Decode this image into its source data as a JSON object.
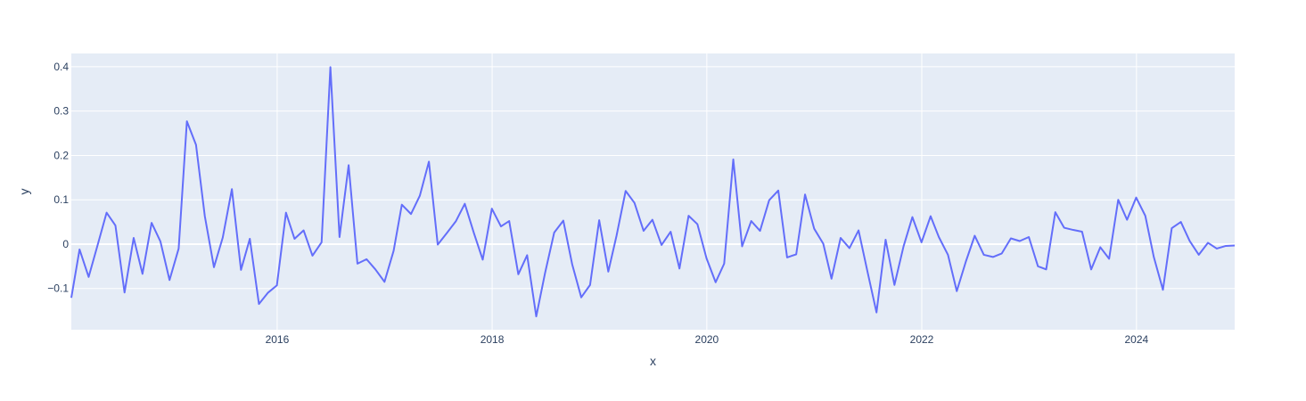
{
  "chart_data": {
    "type": "line",
    "xlabel": "x",
    "ylabel": "y",
    "x_axis": {
      "type": "date",
      "range": [
        "2014-01-31",
        "2024-11-30"
      ],
      "ticks": [
        "2016-01-01",
        "2018-01-01",
        "2020-01-01",
        "2022-01-01",
        "2024-01-01"
      ],
      "tick_labels": [
        "2016",
        "2018",
        "2020",
        "2022",
        "2024"
      ]
    },
    "y_axis": {
      "range": [
        -0.193,
        0.43
      ],
      "ticks": [
        -0.1,
        0,
        0.1,
        0.2,
        0.3,
        0.4
      ],
      "tick_labels": [
        "−0.1",
        "0",
        "0.1",
        "0.2",
        "0.3",
        "0.4"
      ]
    },
    "grid": true,
    "legend": "none",
    "colors": {
      "line": "#636efa",
      "plot_bg": "#e5ecf6",
      "grid": "#ffffff",
      "text": "#2a3f5f"
    },
    "series": [
      {
        "x": [
          "2014-01-31",
          "2014-02-28",
          "2014-03-31",
          "2014-04-30",
          "2014-05-31",
          "2014-06-30",
          "2014-07-31",
          "2014-08-31",
          "2014-09-30",
          "2014-10-31",
          "2014-11-30",
          "2014-12-31",
          "2015-01-31",
          "2015-02-28",
          "2015-03-31",
          "2015-04-30",
          "2015-05-31",
          "2015-06-30",
          "2015-07-31",
          "2015-08-31",
          "2015-09-30",
          "2015-10-31",
          "2015-11-30",
          "2015-12-31",
          "2016-01-31",
          "2016-02-29",
          "2016-03-31",
          "2016-04-30",
          "2016-05-31",
          "2016-06-30",
          "2016-07-31",
          "2016-08-31",
          "2016-09-30",
          "2016-10-31",
          "2016-11-30",
          "2016-12-31",
          "2017-01-31",
          "2017-02-28",
          "2017-03-31",
          "2017-04-30",
          "2017-05-31",
          "2017-06-30",
          "2017-07-31",
          "2017-08-31",
          "2017-09-30",
          "2017-10-31",
          "2017-11-30",
          "2017-12-31",
          "2018-01-31",
          "2018-02-28",
          "2018-03-31",
          "2018-04-30",
          "2018-05-31",
          "2018-06-30",
          "2018-07-31",
          "2018-08-31",
          "2018-09-30",
          "2018-10-31",
          "2018-11-30",
          "2018-12-31",
          "2019-01-31",
          "2019-02-28",
          "2019-03-31",
          "2019-04-30",
          "2019-05-31",
          "2019-06-30",
          "2019-07-31",
          "2019-08-31",
          "2019-09-30",
          "2019-10-31",
          "2019-11-30",
          "2019-12-31",
          "2020-01-31",
          "2020-02-29",
          "2020-03-31",
          "2020-04-30",
          "2020-05-31",
          "2020-06-30",
          "2020-07-31",
          "2020-08-31",
          "2020-09-30",
          "2020-10-31",
          "2020-11-30",
          "2020-12-31",
          "2021-01-31",
          "2021-02-28",
          "2021-03-31",
          "2021-04-30",
          "2021-05-31",
          "2021-06-30",
          "2021-07-31",
          "2021-08-31",
          "2021-09-30",
          "2021-10-31",
          "2021-11-30",
          "2021-12-31",
          "2022-01-31",
          "2022-02-28",
          "2022-03-31",
          "2022-04-30",
          "2022-05-31",
          "2022-06-30",
          "2022-07-31",
          "2022-08-31",
          "2022-09-30",
          "2022-10-31",
          "2022-11-30",
          "2022-12-31",
          "2023-01-31",
          "2023-02-28",
          "2023-03-31",
          "2023-04-30",
          "2023-05-31",
          "2023-06-30",
          "2023-07-31",
          "2023-08-31",
          "2023-09-30",
          "2023-10-31",
          "2023-11-30",
          "2023-12-31",
          "2024-01-31",
          "2024-02-29",
          "2024-03-31",
          "2024-04-30",
          "2024-05-31",
          "2024-06-30",
          "2024-07-31",
          "2024-08-31",
          "2024-09-30",
          "2024-10-31",
          "2024-11-30"
        ],
        "y": [
          -0.121,
          -0.012,
          -0.074,
          -0.003,
          0.071,
          0.042,
          -0.109,
          0.014,
          -0.067,
          0.048,
          0.006,
          -0.081,
          -0.01,
          0.277,
          0.224,
          0.063,
          -0.052,
          0.015,
          0.124,
          -0.058,
          0.012,
          -0.135,
          -0.11,
          -0.093,
          0.071,
          0.012,
          0.031,
          -0.026,
          0.004,
          0.399,
          0.016,
          0.178,
          -0.044,
          -0.034,
          -0.057,
          -0.085,
          -0.015,
          0.089,
          0.068,
          0.109,
          0.186,
          -0.001,
          0.025,
          0.052,
          0.091,
          0.025,
          -0.035,
          0.08,
          0.04,
          0.052,
          -0.068,
          -0.025,
          -0.163,
          -0.065,
          0.026,
          0.053,
          -0.045,
          -0.12,
          -0.092,
          0.054,
          -0.062,
          0.019,
          0.12,
          0.093,
          0.03,
          0.055,
          -0.002,
          0.028,
          -0.055,
          0.064,
          0.045,
          -0.032,
          -0.086,
          -0.044,
          0.191,
          -0.005,
          0.052,
          0.03,
          0.099,
          0.121,
          -0.03,
          -0.023,
          0.112,
          0.035,
          0.001,
          -0.078,
          0.014,
          -0.009,
          0.031,
          -0.061,
          -0.154,
          0.01,
          -0.092,
          -0.005,
          0.061,
          0.004,
          0.063,
          0.016,
          -0.024,
          -0.106,
          -0.039,
          0.019,
          -0.024,
          -0.029,
          -0.021,
          0.013,
          0.007,
          0.016,
          -0.05,
          -0.057,
          0.072,
          0.037,
          0.032,
          0.028,
          -0.057,
          -0.007,
          -0.033,
          0.1,
          0.055,
          0.105,
          0.064,
          -0.029,
          -0.103,
          0.036,
          0.05,
          0.007,
          -0.024,
          0.003,
          -0.01,
          -0.004,
          -0.003
        ]
      }
    ]
  }
}
